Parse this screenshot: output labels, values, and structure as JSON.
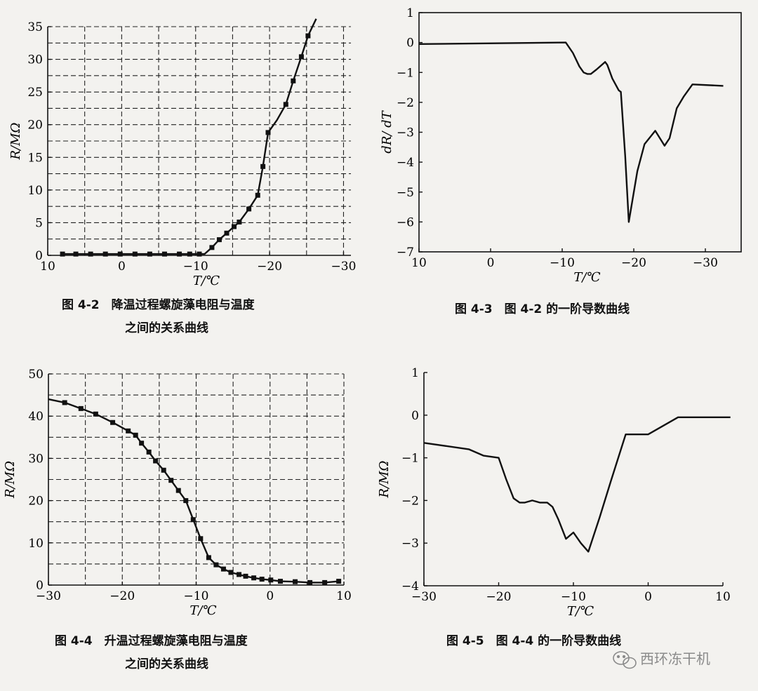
{
  "chart_data": [
    {
      "id": "fig42",
      "type": "line",
      "xlabel": "T/℃",
      "ylabel": "R/MΩ",
      "xlim": [
        10,
        -31
      ],
      "ylim": [
        0,
        35
      ],
      "xticks": [
        10,
        0,
        -10,
        -20,
        -30
      ],
      "xtick_labels": [
        "10",
        "0",
        "−10",
        "−20",
        "−30"
      ],
      "yticks": [
        0,
        5,
        10,
        15,
        20,
        25,
        30,
        35
      ],
      "ytick_labels": [
        "0",
        "5",
        "10",
        "15",
        "20",
        "25",
        "30",
        "35"
      ],
      "grid": true,
      "caption": [
        "图 4-2　降温过程螺旋藻电阻与温度",
        "之间的关系曲线"
      ],
      "series": [
        {
          "marker": "square",
          "x": [
            8,
            6.2,
            4.2,
            2.2,
            0.2,
            -1.8,
            -3.8,
            -5.8,
            -7.8,
            -9.2,
            -10.5,
            -11.2,
            -12.2,
            -13.2,
            -14.2,
            -15.2,
            -15.9,
            -17.2,
            -18.4,
            -19.1,
            -19.8,
            -21,
            -22.2,
            -23.2,
            -24.3,
            -25.2,
            -26.3
          ],
          "y": [
            0.2,
            0.2,
            0.2,
            0.2,
            0.2,
            0.2,
            0.2,
            0.2,
            0.2,
            0.2,
            0.2,
            0.2,
            1.2,
            2.4,
            3.4,
            4.4,
            5.1,
            7.1,
            9.2,
            13.6,
            18.8,
            20.7,
            23.1,
            26.7,
            30.4,
            33.6,
            36.2
          ],
          "markers": [
            0,
            1,
            2,
            3,
            4,
            5,
            6,
            7,
            8,
            9,
            10,
            12,
            13,
            14,
            15,
            16,
            17,
            18,
            19,
            20,
            22,
            23,
            24,
            25
          ]
        }
      ]
    },
    {
      "id": "fig43",
      "type": "line",
      "xlabel": "T/℃",
      "ylabel": "dR/ dT",
      "xlim": [
        10,
        -35
      ],
      "ylim": [
        -7,
        1
      ],
      "xticks": [
        10,
        0,
        -10,
        -20,
        -30
      ],
      "xtick_labels": [
        "10",
        "0",
        "−10",
        "−20",
        "−30"
      ],
      "yticks": [
        1,
        0,
        -1,
        -2,
        -3,
        -4,
        -5,
        -6,
        -7
      ],
      "ytick_labels": [
        "1",
        "0",
        "−1",
        "−2",
        "−3",
        "−4",
        "−5",
        "−6",
        "−7"
      ],
      "grid": false,
      "caption": [
        "图 4-3　图 4-2 的一阶导数曲线"
      ],
      "series": [
        {
          "x": [
            10,
            -10.5,
            -11.5,
            -12.4,
            -13,
            -13.5,
            -14,
            -14.8,
            -16,
            -16.3,
            -17,
            -17.9,
            -18.2,
            -18.8,
            -19.3,
            -20.5,
            -21.5,
            -23,
            -24.3,
            -25,
            -26,
            -27,
            -28.2,
            -32.5
          ],
          "y": [
            -0.05,
            0,
            -0.35,
            -0.8,
            -1,
            -1.05,
            -1.05,
            -0.9,
            -0.65,
            -0.75,
            -1.2,
            -1.6,
            -1.65,
            -3.8,
            -6,
            -4.3,
            -3.4,
            -2.95,
            -3.45,
            -3.2,
            -2.2,
            -1.8,
            -1.4,
            -1.45
          ]
        }
      ]
    },
    {
      "id": "fig44",
      "type": "line",
      "xlabel": "T/℃",
      "ylabel": "R/MΩ",
      "xlim": [
        -30,
        10
      ],
      "ylim": [
        0,
        50
      ],
      "xticks": [
        -30,
        -20,
        -10,
        0,
        10
      ],
      "xtick_labels": [
        "−30",
        "−20",
        "−10",
        "0",
        "10"
      ],
      "yticks": [
        0,
        10,
        20,
        30,
        40,
        50
      ],
      "ytick_labels": [
        "0",
        "10",
        "20",
        "30",
        "40",
        "50"
      ],
      "grid": true,
      "caption": [
        "图 4-4　升温过程螺旋藻电阻与温度",
        "之间的关系曲线"
      ],
      "series": [
        {
          "marker": "square",
          "x": [
            -30,
            -27.8,
            -25.6,
            -23.6,
            -21.3,
            -19.2,
            -18.2,
            -17.4,
            -16.4,
            -15.5,
            -14.4,
            -13.4,
            -12.4,
            -11.4,
            -10.4,
            -9.4,
            -8.3,
            -7.3,
            -6.3,
            -5.3,
            -4.2,
            -3.3,
            -2.2,
            -1.1,
            0.1,
            1.4,
            3.4,
            5.4,
            7.4,
            9.3
          ],
          "y": [
            44,
            43.2,
            41.8,
            40.5,
            38.5,
            36.5,
            35.5,
            33.6,
            31.5,
            29.4,
            27.2,
            24.8,
            22.4,
            20,
            15.5,
            11,
            6.5,
            4.8,
            3.8,
            3,
            2.5,
            2.1,
            1.7,
            1.4,
            1.2,
            0.9,
            0.8,
            0.6,
            0.6,
            0.9
          ],
          "markers": [
            1,
            2,
            3,
            4,
            5,
            6,
            7,
            8,
            9,
            10,
            11,
            12,
            13,
            14,
            15,
            16,
            17,
            18,
            19,
            20,
            21,
            22,
            23,
            24,
            25,
            26,
            27,
            28,
            29
          ]
        }
      ]
    },
    {
      "id": "fig45",
      "type": "line",
      "xlabel": "T/℃",
      "ylabel": "R/MΩ",
      "xlim": [
        -30,
        10
      ],
      "ylim": [
        -4,
        1
      ],
      "xticks": [
        -30,
        -20,
        -10,
        0,
        10
      ],
      "xtick_labels": [
        "−30",
        "−20",
        "−10",
        "0",
        "10"
      ],
      "yticks": [
        1,
        0,
        -1,
        -2,
        -3,
        -4
      ],
      "ytick_labels": [
        "1",
        "0",
        "−1",
        "−2",
        "−3",
        "−4"
      ],
      "grid": false,
      "caption": [
        "图 4-5　图 4-4 的一阶导数曲线"
      ],
      "series": [
        {
          "x": [
            -30,
            -24,
            -22,
            -20,
            -19,
            -18,
            -17.2,
            -16.5,
            -15.5,
            -14.5,
            -13.5,
            -12.8,
            -12,
            -11,
            -10,
            -9,
            -8,
            -6.5,
            -5,
            -3,
            0,
            4,
            11
          ],
          "y": [
            -0.65,
            -0.8,
            -0.95,
            -1,
            -1.5,
            -1.95,
            -2.05,
            -2.05,
            -2,
            -2.05,
            -2.05,
            -2.15,
            -2.45,
            -2.9,
            -2.75,
            -3,
            -3.2,
            -2.4,
            -1.55,
            -0.45,
            -0.45,
            -0.05,
            -0.05
          ]
        }
      ]
    }
  ],
  "watermark": "西环冻干机"
}
